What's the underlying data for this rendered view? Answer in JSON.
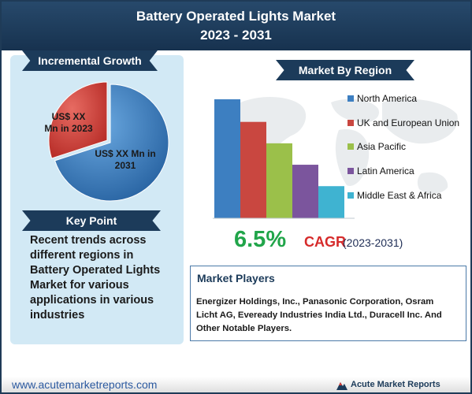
{
  "header": {
    "title_line1": "Battery Operated Lights Market",
    "title_line2": "2023 - 2031"
  },
  "incremental_growth": {
    "heading": "Incremental Growth",
    "label_2023": "US$ XX Mn in 2023",
    "label_2031": "US$ XX Mn in 2031"
  },
  "key_point": {
    "heading": "Key Point",
    "lines": [
      "Recent trends across",
      "different regions in",
      "Battery Operated Lights",
      "Market for various",
      "applications in various",
      "industries"
    ]
  },
  "market_by_region": {
    "heading": "Market By Region"
  },
  "cagr": {
    "value": "6.5%",
    "label": "CAGR",
    "period": "(2023-2031)"
  },
  "market_players": {
    "heading": "Market Players",
    "lines": [
      "Energizer Holdings, Inc., Panasonic Corporation, Osram",
      "Licht AG, Eveready Industries India Ltd., Duracell Inc. And",
      "Other Notable Players."
    ]
  },
  "footer": {
    "url": "www.acutemarketreports.com",
    "brand": "Acute Market Reports"
  },
  "colors": {
    "navy": "#1c3b5a",
    "pie_2023": "#d93a34",
    "pie_2031": "#3e82c8",
    "cagr_green": "#21a54a",
    "cagr_red": "#d62b2b"
  },
  "chart_data": [
    {
      "type": "pie",
      "title": "Incremental Growth",
      "categories": [
        "2023",
        "2031"
      ],
      "values": [
        30,
        70
      ],
      "labels": [
        "US$ XX Mn in 2023",
        "US$ XX Mn in 2031"
      ],
      "colors": [
        "#d93a34",
        "#3e82c8"
      ]
    },
    {
      "type": "bar",
      "title": "Market By Region",
      "categories": [
        "North America",
        "UK and European Union",
        "Asia Pacific",
        "Latin America",
        "Middle East & Africa"
      ],
      "values": [
        100,
        81,
        63,
        45,
        27
      ],
      "colors": [
        "#3d7fc1",
        "#c94740",
        "#9bc04a",
        "#7b559d",
        "#3fb3d1"
      ],
      "ylim": [
        0,
        100
      ],
      "grid": false,
      "legend": "right"
    }
  ]
}
